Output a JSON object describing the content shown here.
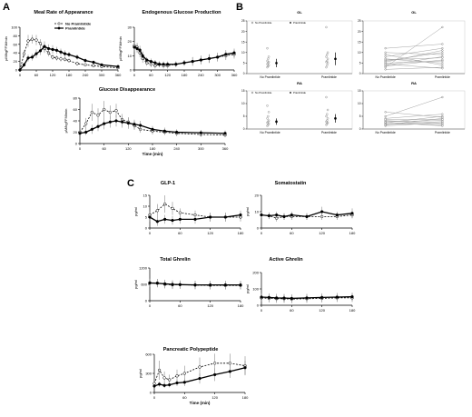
{
  "panel_labels": {
    "A": "A",
    "B": "B",
    "C": "C"
  },
  "legend_A": {
    "series": [
      "No Pramlintide",
      "Pramlintide"
    ]
  },
  "legend_B": {
    "series": [
      "No Pramlintide",
      "Pramlintide"
    ]
  },
  "chart_data": [
    {
      "id": "meal_ra",
      "type": "line",
      "title": "Meal Rate of Appearance",
      "xlabel": "",
      "ylabel": "µM/kgFFM/min",
      "xlim": [
        0,
        360
      ],
      "ylim": [
        0,
        100
      ],
      "xticks": [
        "0",
        "60",
        "120",
        "180",
        "240",
        "300",
        "360"
      ],
      "yticks": [
        "0",
        "20",
        "40",
        "60",
        "80",
        "100"
      ],
      "x": [
        0,
        15,
        30,
        45,
        60,
        75,
        90,
        105,
        120,
        135,
        150,
        165,
        180,
        210,
        240,
        270,
        300,
        360
      ],
      "series": [
        {
          "name": "No Pramlintide",
          "style": "dashed-open",
          "values": [
            0,
            38,
            68,
            72,
            70,
            62,
            50,
            40,
            30,
            28,
            26,
            25,
            22,
            15,
            12,
            10,
            8,
            5
          ],
          "err": [
            0,
            8,
            14,
            10,
            12,
            10,
            10,
            8,
            6,
            6,
            6,
            5,
            5,
            4,
            3,
            3,
            3,
            2
          ]
        },
        {
          "name": "Pramlintide",
          "style": "solid-filled",
          "values": [
            0,
            12,
            28,
            30,
            38,
            45,
            55,
            50,
            48,
            46,
            42,
            38,
            36,
            30,
            22,
            18,
            12,
            8
          ],
          "err": [
            0,
            5,
            8,
            8,
            10,
            10,
            12,
            10,
            10,
            8,
            8,
            8,
            6,
            6,
            5,
            4,
            3,
            3
          ]
        }
      ]
    },
    {
      "id": "egp",
      "type": "line",
      "title": "Endogenous Glucose Production",
      "xlabel": "",
      "ylabel": "µM/kgFFM/min",
      "xlim": [
        0,
        360
      ],
      "ylim": [
        0,
        30
      ],
      "xticks": [
        "0",
        "60",
        "120",
        "180",
        "240",
        "300",
        "360"
      ],
      "yticks": [
        "0",
        "10",
        "20",
        "30"
      ],
      "x": [
        0,
        10,
        20,
        30,
        45,
        60,
        75,
        90,
        105,
        120,
        150,
        180,
        210,
        240,
        270,
        300,
        330,
        360
      ],
      "series": [
        {
          "name": "No Pramlintide",
          "style": "dashed-open",
          "values": [
            17,
            16,
            12,
            8,
            5,
            4,
            3,
            4,
            3,
            3,
            4,
            5,
            6,
            7,
            8,
            9,
            10,
            11
          ],
          "err": [
            3,
            3,
            3,
            3,
            2,
            2,
            2,
            2,
            2,
            2,
            2,
            2,
            3,
            3,
            3,
            3,
            3,
            3
          ]
        },
        {
          "name": "Pramlintide",
          "style": "solid-filled",
          "values": [
            16,
            15,
            14,
            10,
            7,
            6,
            5,
            4,
            4,
            4,
            4,
            5,
            6,
            7,
            8,
            9,
            11,
            12
          ],
          "err": [
            3,
            3,
            3,
            3,
            2,
            2,
            2,
            2,
            2,
            2,
            2,
            2,
            3,
            3,
            3,
            3,
            3,
            3
          ]
        }
      ]
    },
    {
      "id": "gluc_disappearance",
      "type": "line",
      "title": "Glucose Disappearance",
      "xlabel": "Time (min)",
      "ylabel": "µM/kgFFM/min",
      "xlim": [
        0,
        360
      ],
      "ylim": [
        0,
        80
      ],
      "xticks": [
        "0",
        "60",
        "120",
        "180",
        "240",
        "300",
        "360"
      ],
      "yticks": [
        "0",
        "20",
        "40",
        "60",
        "80"
      ],
      "x": [
        0,
        15,
        30,
        45,
        60,
        75,
        90,
        105,
        120,
        135,
        150,
        180,
        210,
        240,
        300,
        360
      ],
      "series": [
        {
          "name": "No Pramlintide",
          "style": "dashed-open",
          "values": [
            20,
            35,
            55,
            50,
            60,
            55,
            58,
            42,
            38,
            32,
            25,
            22,
            20,
            18,
            16,
            15
          ],
          "err": [
            4,
            10,
            15,
            12,
            15,
            12,
            12,
            10,
            8,
            8,
            6,
            6,
            5,
            5,
            4,
            4
          ]
        },
        {
          "name": "Pramlintide",
          "style": "solid-filled",
          "values": [
            18,
            20,
            25,
            30,
            35,
            38,
            40,
            38,
            36,
            34,
            32,
            25,
            22,
            20,
            19,
            18
          ],
          "err": [
            4,
            5,
            8,
            8,
            10,
            10,
            10,
            10,
            10,
            8,
            8,
            6,
            6,
            5,
            5,
            5
          ]
        }
      ]
    },
    {
      "id": "gl_b",
      "type": "scatter",
      "title": "GL",
      "xlabel": "",
      "ylabel": "",
      "ylim": [
        0,
        25
      ],
      "categories": [
        "No Pramlintide",
        "Pramlintide"
      ],
      "yticks": [
        "0",
        "5",
        "10",
        "15",
        "20",
        "25"
      ],
      "points": [
        [
          3,
          3.5,
          4,
          4.5,
          5,
          5.5,
          6,
          7,
          8,
          12
        ],
        [
          3,
          4,
          5,
          5.5,
          6,
          7,
          8,
          9,
          10,
          22
        ]
      ],
      "means": [
        5,
        7
      ],
      "err": [
        2,
        3
      ]
    },
    {
      "id": "gl_b_paired",
      "type": "line",
      "title": "GL",
      "xlabel": "",
      "ylabel": "",
      "ylim": [
        0,
        25
      ],
      "categories": [
        "No Pramlintide",
        "Pramlintide"
      ],
      "yticks": [
        "0",
        "5",
        "10",
        "15",
        "20",
        "25"
      ],
      "pairs": [
        [
          2,
          3
        ],
        [
          3,
          22
        ],
        [
          4,
          8
        ],
        [
          5,
          6
        ],
        [
          6,
          10
        ],
        [
          7,
          5
        ],
        [
          8,
          12
        ],
        [
          9,
          4
        ],
        [
          10,
          9
        ],
        [
          12,
          14
        ],
        [
          3.5,
          6.5
        ],
        [
          4.5,
          2.5
        ],
        [
          5.5,
          11
        ],
        [
          6.5,
          7.5
        ]
      ]
    },
    {
      "id": "ra_b",
      "type": "scatter",
      "title": "RA",
      "xlabel": "",
      "ylabel": "",
      "ylim": [
        0,
        18
      ],
      "categories": [
        "No Pramlintide",
        "Pramlintide"
      ],
      "yticks": [
        "0",
        "5",
        "10",
        "15"
      ],
      "points": [
        [
          1.5,
          2,
          2.5,
          3,
          3.5,
          4,
          5,
          6,
          8,
          11
        ],
        [
          2,
          2.5,
          3,
          3.5,
          4,
          5,
          6,
          7,
          9,
          15
        ]
      ],
      "means": [
        3.5,
        5
      ],
      "err": [
        1.5,
        2
      ]
    },
    {
      "id": "ra_b_paired",
      "type": "line",
      "title": "RA",
      "xlabel": "",
      "ylabel": "",
      "ylim": [
        0,
        18
      ],
      "categories": [
        "No Pramlintide",
        "Pramlintide"
      ],
      "yticks": [
        "0",
        "5",
        "10",
        "15"
      ],
      "pairs": [
        [
          1.5,
          3
        ],
        [
          2,
          5
        ],
        [
          2.5,
          2
        ],
        [
          3,
          6
        ],
        [
          3.5,
          4
        ],
        [
          4,
          2.5
        ],
        [
          5,
          7
        ],
        [
          6,
          15
        ],
        [
          8,
          5.5
        ],
        [
          2.2,
          3.5
        ],
        [
          3.2,
          1.5
        ],
        [
          4.5,
          4.5
        ]
      ]
    },
    {
      "id": "glp1",
      "type": "line",
      "title": "GLP-1",
      "xlabel": "",
      "ylabel": "pg/ml",
      "xlim": [
        0,
        180
      ],
      "ylim": [
        0,
        15
      ],
      "xticks": [
        "0",
        "60",
        "120",
        "180"
      ],
      "yticks": [
        "0",
        "5",
        "10",
        "15"
      ],
      "x": [
        0,
        15,
        30,
        45,
        60,
        90,
        120,
        150,
        180
      ],
      "series": [
        {
          "name": "No Pramlintide",
          "style": "dashed-open",
          "values": [
            6,
            8,
            11,
            9,
            7,
            6,
            5,
            5,
            5
          ],
          "err": [
            2,
            3,
            4,
            3,
            2,
            2,
            2,
            2,
            2
          ]
        },
        {
          "name": "Pramlintide",
          "style": "solid-filled",
          "values": [
            5,
            3,
            4,
            3.5,
            4,
            4,
            5,
            5,
            6
          ],
          "err": [
            2,
            2,
            2,
            2,
            2,
            2,
            2,
            2,
            2
          ]
        }
      ]
    },
    {
      "id": "somatostatin",
      "type": "line",
      "title": "Somatostatin",
      "xlabel": "",
      "ylabel": "pg/ml",
      "xlim": [
        0,
        180
      ],
      "ylim": [
        0,
        20
      ],
      "xticks": [
        "0",
        "60",
        "120",
        "180"
      ],
      "yticks": [
        "0",
        "10",
        "20"
      ],
      "x": [
        0,
        15,
        30,
        45,
        60,
        90,
        120,
        150,
        180
      ],
      "series": [
        {
          "name": "No Pramlintide",
          "style": "dashed-open",
          "values": [
            8,
            7.5,
            6,
            7,
            7,
            7,
            7,
            7,
            8
          ],
          "err": [
            2,
            2,
            2,
            2,
            2,
            2,
            2,
            2,
            2
          ]
        },
        {
          "name": "Pramlintide",
          "style": "solid-filled",
          "values": [
            8,
            7.5,
            8,
            7,
            8,
            7,
            10,
            8,
            9
          ],
          "err": [
            2,
            2,
            2,
            2,
            2,
            2,
            3,
            2,
            3
          ]
        }
      ]
    },
    {
      "id": "total_ghrelin",
      "type": "line",
      "title": "Total Ghrelin",
      "xlabel": "",
      "ylabel": "pg/ml",
      "xlim": [
        0,
        180
      ],
      "ylim": [
        0,
        1200
      ],
      "xticks": [
        "0",
        "60",
        "120",
        "180"
      ],
      "yticks": [
        "0",
        "600",
        "1200"
      ],
      "x": [
        0,
        15,
        30,
        45,
        60,
        90,
        120,
        150,
        180
      ],
      "series": [
        {
          "name": "No Pramlintide",
          "style": "dashed-open",
          "values": [
            660,
            650,
            600,
            580,
            590,
            570,
            560,
            560,
            560
          ],
          "err": [
            150,
            150,
            150,
            150,
            150,
            150,
            150,
            150,
            150
          ]
        },
        {
          "name": "Pramlintide",
          "style": "solid-filled",
          "values": [
            650,
            640,
            620,
            600,
            590,
            580,
            580,
            580,
            580
          ],
          "err": [
            150,
            150,
            150,
            150,
            150,
            150,
            150,
            150,
            150
          ]
        }
      ]
    },
    {
      "id": "active_ghrelin",
      "type": "line",
      "title": "Active Ghrelin",
      "xlabel": "",
      "ylabel": "pg/ml",
      "xlim": [
        0,
        180
      ],
      "ylim": [
        0,
        200
      ],
      "xticks": [
        "0",
        "60",
        "120",
        "180"
      ],
      "yticks": [
        "0",
        "100",
        "200"
      ],
      "x": [
        0,
        15,
        30,
        45,
        60,
        90,
        120,
        150,
        180
      ],
      "series": [
        {
          "name": "No Pramlintide",
          "style": "dashed-open",
          "values": [
            45,
            42,
            40,
            40,
            38,
            40,
            42,
            45,
            45
          ],
          "err": [
            25,
            25,
            25,
            25,
            25,
            25,
            25,
            25,
            25
          ]
        },
        {
          "name": "Pramlintide",
          "style": "solid-filled",
          "values": [
            50,
            48,
            45,
            44,
            42,
            45,
            48,
            50,
            52
          ],
          "err": [
            25,
            25,
            25,
            25,
            25,
            25,
            25,
            25,
            25
          ]
        }
      ]
    },
    {
      "id": "pancreatic_pp",
      "type": "line",
      "title": "Pancreatic Polypeptide",
      "xlabel": "Time (min)",
      "ylabel": "pg/ml",
      "xlim": [
        0,
        180
      ],
      "ylim": [
        0,
        600
      ],
      "xticks": [
        "0",
        "60",
        "120",
        "180"
      ],
      "yticks": [
        "0",
        "300",
        "600"
      ],
      "x": [
        0,
        10,
        20,
        30,
        45,
        60,
        90,
        120,
        150,
        180
      ],
      "series": [
        {
          "name": "No Pramlintide",
          "style": "dashed-open",
          "values": [
            140,
            350,
            230,
            200,
            260,
            300,
            400,
            460,
            460,
            420
          ],
          "err": [
            40,
            150,
            100,
            80,
            100,
            120,
            150,
            150,
            150,
            150
          ]
        },
        {
          "name": "Pramlintide",
          "style": "solid-filled",
          "values": [
            100,
            130,
            110,
            120,
            150,
            160,
            220,
            280,
            330,
            390
          ],
          "err": [
            30,
            40,
            40,
            40,
            50,
            60,
            80,
            100,
            100,
            110
          ]
        }
      ]
    }
  ]
}
